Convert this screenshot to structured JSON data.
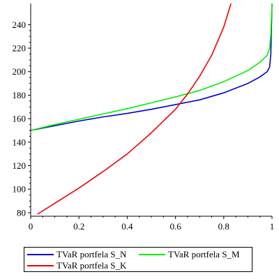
{
  "chart_data": {
    "type": "line",
    "title": "",
    "xlabel": "",
    "ylabel": "",
    "xlim": [
      0,
      1
    ],
    "ylim": [
      77,
      258
    ],
    "x_ticks": [
      0,
      0.2,
      0.4,
      0.6,
      0.8,
      1
    ],
    "x_tick_labels": [
      "0",
      "0.2",
      "0.4",
      "0.6",
      "0.8",
      "1"
    ],
    "y_ticks": [
      80,
      100,
      120,
      140,
      160,
      180,
      200,
      220,
      240
    ],
    "y_tick_labels": [
      "80",
      "100",
      "120",
      "140",
      "160",
      "180",
      "200",
      "220",
      "240"
    ],
    "grid": false,
    "legend_position": "bottom",
    "series": [
      {
        "name": "TVaR portfela S_N",
        "color": "#0000cc",
        "x": [
          0,
          0.1,
          0.2,
          0.3,
          0.4,
          0.5,
          0.6,
          0.7,
          0.8,
          0.9,
          0.95,
          0.98,
          0.99,
          0.995,
          1.0
        ],
        "y": [
          150,
          154,
          158,
          161.5,
          164.5,
          168,
          172,
          176,
          182,
          190,
          195.5,
          200,
          204,
          215,
          258
        ]
      },
      {
        "name": "TVaR portfela S_M",
        "color": "#00ee00",
        "x": [
          0,
          0.1,
          0.2,
          0.3,
          0.4,
          0.5,
          0.6,
          0.7,
          0.8,
          0.9,
          0.95,
          0.98,
          0.99,
          0.995,
          1.0
        ],
        "y": [
          150,
          155,
          159.5,
          164,
          168.5,
          173.5,
          178.5,
          184,
          191.5,
          201,
          208,
          214,
          220,
          232,
          258
        ]
      },
      {
        "name": "TVaR portfela S_K",
        "color": "#ee0000",
        "x": [
          0.03,
          0.1,
          0.2,
          0.3,
          0.4,
          0.5,
          0.6,
          0.65,
          0.7,
          0.75,
          0.8,
          0.83
        ],
        "y": [
          79,
          88,
          101,
          115,
          130,
          148,
          168,
          181,
          196,
          214,
          238,
          258
        ]
      }
    ]
  }
}
